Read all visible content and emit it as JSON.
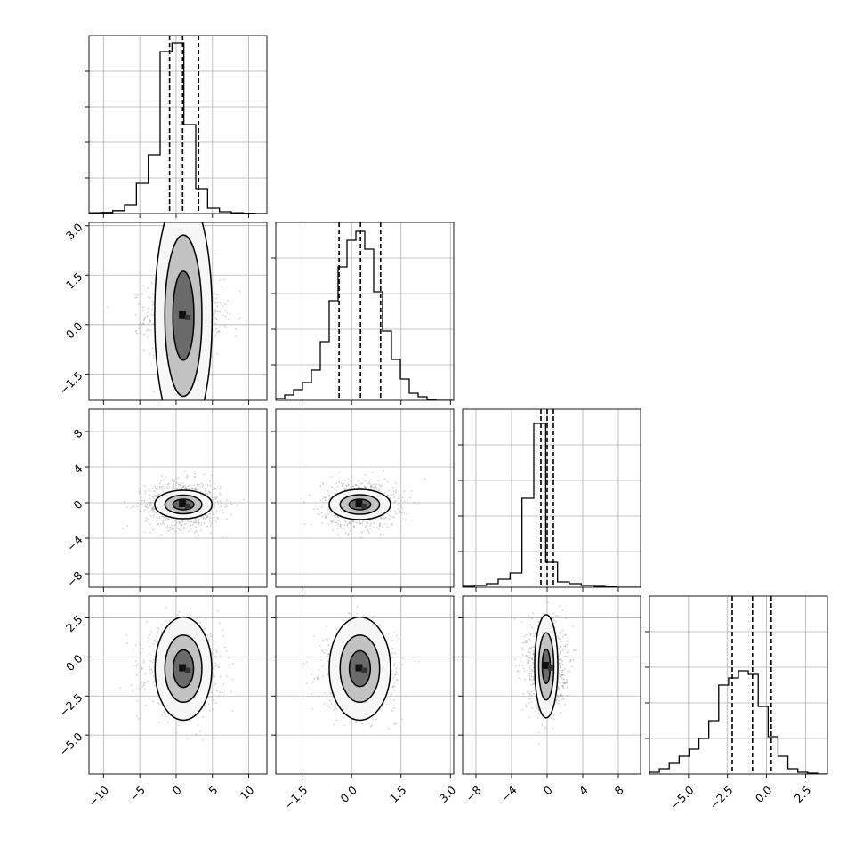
{
  "chart_data": {
    "type": "corner",
    "title": "",
    "grid": true,
    "parameters": [
      {
        "range": [
          -12,
          12.5
        ],
        "ticks": [
          -10,
          -5,
          0,
          5,
          10
        ],
        "tick_labels": [
          "−10",
          "−5",
          "0",
          "5",
          "10"
        ],
        "quantiles": [
          -0.9,
          0.9,
          3.1
        ],
        "hist_bins": [
          0.004,
          0.006,
          0.016,
          0.05,
          0.17,
          0.33,
          0.91,
          0.96,
          0.5,
          0.14,
          0.03,
          0.01,
          0.004,
          0.002,
          0.0
        ]
      },
      {
        "range": [
          -2.3,
          3.1
        ],
        "ticks": [
          -1.5,
          0.0,
          1.5,
          3.0
        ],
        "tick_labels": [
          "−1.5",
          "0.0",
          "1.5",
          "3.0"
        ],
        "quantiles": [
          -0.38,
          0.27,
          0.88
        ],
        "hist_bins": [
          0.01,
          0.03,
          0.06,
          0.1,
          0.17,
          0.33,
          0.56,
          0.75,
          0.9,
          0.95,
          0.85,
          0.61,
          0.39,
          0.23,
          0.12,
          0.04,
          0.02,
          0.005,
          0.0,
          0.0
        ]
      },
      {
        "range": [
          -9.5,
          10.5
        ],
        "ticks": [
          -8,
          -4,
          0,
          4,
          8
        ],
        "tick_labels": [
          "−8",
          "−4",
          "0",
          "4",
          "8"
        ],
        "quantiles": [
          -0.7,
          0.0,
          0.7
        ],
        "hist_bins": [
          0.005,
          0.01,
          0.02,
          0.045,
          0.08,
          0.5,
          0.92,
          0.14,
          0.03,
          0.02,
          0.01,
          0.005,
          0.002,
          0.0,
          0.0
        ]
      },
      {
        "range": [
          -7.5,
          3.9
        ],
        "ticks": [
          -5.0,
          -2.5,
          0.0,
          2.5
        ],
        "tick_labels": [
          "−5.0",
          "−2.5",
          "0.0",
          "2.5"
        ],
        "quantiles": [
          -2.2,
          -0.9,
          0.3
        ],
        "hist_bins": [
          0.01,
          0.03,
          0.06,
          0.1,
          0.14,
          0.2,
          0.3,
          0.5,
          0.54,
          0.58,
          0.56,
          0.38,
          0.21,
          0.1,
          0.03,
          0.01,
          0.005,
          0.0
        ]
      }
    ],
    "pairs": [
      {
        "x": 0,
        "y": 1,
        "mean": [
          1.0,
          0.27
        ],
        "sd": [
          2.6,
          0.55
        ],
        "contours": [
          {
            "level": 0.5,
            "radius": [
              1.45,
              1.35
            ]
          },
          {
            "level": 1.0,
            "radius": [
              2.55,
              2.45
            ]
          },
          {
            "level": 1.5,
            "radius": [
              3.95,
              3.75
            ]
          }
        ]
      },
      {
        "x": 0,
        "y": 2,
        "mean": [
          1.0,
          -0.2
        ],
        "sd": [
          2.6,
          1.3
        ],
        "contours": [
          {
            "level": 0.5,
            "radius": [
              1.45,
              0.6
            ]
          },
          {
            "level": 1.0,
            "radius": [
              2.55,
              1.05
            ]
          },
          {
            "level": 1.5,
            "radius": [
              3.95,
              1.6
            ]
          }
        ]
      },
      {
        "x": 1,
        "y": 2,
        "mean": [
          0.25,
          -0.2
        ],
        "sd": [
          0.55,
          1.3
        ],
        "contours": [
          {
            "level": 0.5,
            "radius": [
              0.33,
              0.6
            ]
          },
          {
            "level": 1.0,
            "radius": [
              0.6,
              1.1
            ]
          },
          {
            "level": 1.5,
            "radius": [
              0.93,
              1.7
            ]
          }
        ]
      },
      {
        "x": 0,
        "y": 3,
        "mean": [
          1.0,
          -0.75
        ],
        "sd": [
          2.6,
          1.3
        ],
        "contours": [
          {
            "level": 0.5,
            "radius": [
              1.4,
              1.2
            ]
          },
          {
            "level": 1.0,
            "radius": [
              2.55,
              2.15
            ]
          },
          {
            "level": 1.5,
            "radius": [
              3.9,
              3.3
            ]
          }
        ]
      },
      {
        "x": 1,
        "y": 3,
        "mean": [
          0.25,
          -0.75
        ],
        "sd": [
          0.55,
          1.3
        ],
        "contours": [
          {
            "level": 0.5,
            "radius": [
              0.32,
              1.15
            ]
          },
          {
            "level": 1.0,
            "radius": [
              0.6,
              2.15
            ]
          },
          {
            "level": 1.5,
            "radius": [
              0.93,
              3.3
            ]
          }
        ]
      },
      {
        "x": 2,
        "y": 3,
        "mean": [
          -0.1,
          -0.6
        ],
        "sd": [
          1.1,
          1.4
        ],
        "contours": [
          {
            "level": 0.5,
            "radius": [
              0.45,
              1.1
            ]
          },
          {
            "level": 1.0,
            "radius": [
              0.85,
              2.15
            ]
          },
          {
            "level": 1.5,
            "radius": [
              1.3,
              3.3
            ]
          }
        ]
      }
    ]
  }
}
